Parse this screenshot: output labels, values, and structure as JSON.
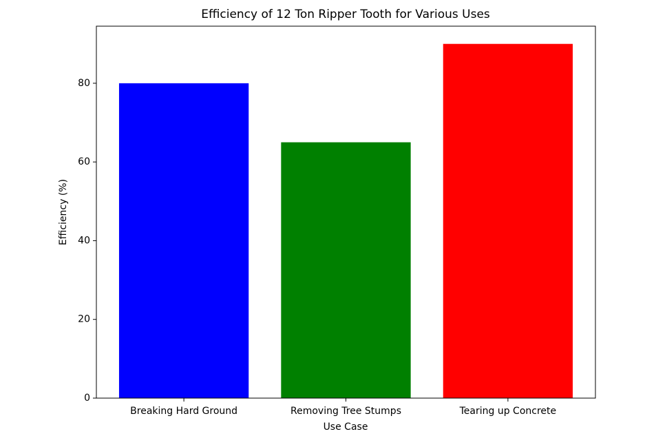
{
  "chart_data": {
    "type": "bar",
    "title": "Efficiency of 12 Ton Ripper Tooth for Various Uses",
    "x_label": "Use Case",
    "y_label": "Efficiency (%)",
    "categories": [
      "Breaking Hard Ground",
      "Removing Tree Stumps",
      "Tearing up Concrete"
    ],
    "values": [
      80,
      65,
      90
    ],
    "colors": [
      "#0000ff",
      "#008000",
      "#ff0000"
    ],
    "ylim": [
      0,
      94.5
    ],
    "yticks": [
      0,
      20,
      40,
      60,
      80
    ],
    "grid": false
  }
}
